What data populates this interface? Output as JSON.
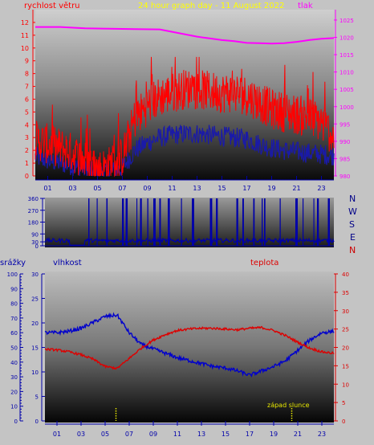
{
  "header": {
    "wind_label": "rychlost větru",
    "title": "24 hour graph day - 11 August 2022",
    "pressure_label": "tlak"
  },
  "bottom": {
    "precip_label": "srážky",
    "humidity_label": "vlhkost",
    "temp_label": "teplota",
    "sunset_label": "západ slunce"
  },
  "compass": [
    "N",
    "W",
    "S",
    "E",
    "N"
  ],
  "colors": {
    "wind_gust": "#ff0000",
    "wind_avg": "#1a1aa8",
    "pressure": "#ff00ff",
    "direction": "#0000aa",
    "humidity": "#0000cc",
    "temperature": "#dd0000",
    "sun_marker": "#e8e800",
    "background": "#c4c4c4"
  },
  "chart_data": [
    {
      "type": "line",
      "title": "24 hour graph day - 11 August 2022",
      "x_ticks": [
        "01",
        "03",
        "05",
        "07",
        "09",
        "11",
        "13",
        "15",
        "17",
        "19",
        "21",
        "23"
      ],
      "xlim": [
        0,
        24
      ],
      "y_left": {
        "label": "rychlost větru",
        "ylim": [
          0,
          13
        ],
        "ticks": [
          0,
          1,
          2,
          3,
          4,
          5,
          6,
          7,
          8,
          9,
          10,
          11,
          12
        ]
      },
      "y_right": {
        "label": "tlak",
        "ylim": [
          980,
          1028
        ],
        "ticks": [
          980,
          985,
          990,
          995,
          1000,
          1005,
          1010,
          1015,
          1020,
          1025
        ]
      },
      "series": [
        {
          "name": "tlak",
          "axis": "right",
          "x": [
            0,
            2,
            4,
            6,
            8,
            10,
            11,
            12,
            13,
            14,
            15,
            16,
            17,
            18,
            19,
            20,
            21,
            22,
            23,
            24
          ],
          "y": [
            1023,
            1023,
            1022.6,
            1022.5,
            1022.4,
            1022.3,
            1021.6,
            1020.9,
            1020.2,
            1019.7,
            1019.2,
            1018.9,
            1018.4,
            1018.3,
            1018.2,
            1018.3,
            1018.7,
            1019.2,
            1019.6,
            1019.8
          ]
        },
        {
          "name": "gust",
          "axis": "left",
          "x": [
            0,
            1,
            2,
            3,
            4,
            5,
            6,
            7,
            8,
            9,
            10,
            11,
            12,
            13,
            14,
            15,
            16,
            17,
            18,
            19,
            20,
            21,
            22,
            23,
            24
          ],
          "y": [
            2.8,
            2.5,
            2.2,
            1.8,
            1.2,
            0.5,
            0.8,
            1.5,
            4.5,
            5.5,
            6.2,
            6.5,
            6.8,
            6.8,
            6.6,
            6.5,
            6.5,
            6.3,
            5.8,
            5.2,
            5.0,
            4.8,
            4.6,
            4.2,
            3.0
          ]
        },
        {
          "name": "avg",
          "axis": "left",
          "x": [
            0,
            1,
            2,
            3,
            4,
            5,
            6,
            7,
            8,
            9,
            10,
            11,
            12,
            13,
            14,
            15,
            16,
            17,
            18,
            19,
            20,
            21,
            22,
            23,
            24
          ],
          "y": [
            1.5,
            1.2,
            1.0,
            0.8,
            0.5,
            0.2,
            0.3,
            0.6,
            2.0,
            2.6,
            3.0,
            3.2,
            3.3,
            3.3,
            3.2,
            3.1,
            3.0,
            2.9,
            2.5,
            2.2,
            2.0,
            1.9,
            1.8,
            1.7,
            1.6
          ]
        }
      ]
    },
    {
      "type": "line",
      "x_ticks": [
        "01",
        "03",
        "05",
        "07",
        "09",
        "11",
        "13",
        "15",
        "17",
        "19",
        "21",
        "23"
      ],
      "xlim": [
        0,
        24
      ],
      "y": {
        "ylim": [
          0,
          360
        ],
        "ticks": [
          0,
          30,
          90,
          180,
          270,
          360
        ]
      },
      "series": [
        {
          "name": "direction",
          "baseline": 40,
          "spikes_hours": [
            3.6,
            4.3,
            5.1,
            6.4,
            6.7,
            7.6,
            7.9,
            8.5,
            9.0,
            9.5,
            10.2,
            11.3,
            12.2,
            13.7,
            14.2,
            15.9,
            16.4,
            17.3,
            18.0,
            18.2,
            19.5,
            20.8,
            21.4,
            22.3,
            22.6,
            23.5
          ]
        }
      ]
    },
    {
      "type": "line",
      "x_ticks": [
        "01",
        "03",
        "05",
        "07",
        "09",
        "11",
        "13",
        "15",
        "17",
        "19",
        "21",
        "23"
      ],
      "xlim": [
        0,
        24
      ],
      "y_left_outer": {
        "label": "srážky",
        "ylim": [
          0,
          100
        ],
        "ticks": [
          0,
          10,
          20,
          30,
          40,
          50,
          60,
          70,
          80,
          90,
          100
        ]
      },
      "y_left_inner": {
        "label": "vlhkost",
        "ylim": [
          0,
          30
        ],
        "ticks": [
          0,
          5,
          10,
          15,
          20,
          25,
          30
        ]
      },
      "y_right": {
        "label": "teplota",
        "ylim": [
          0,
          40
        ],
        "ticks": [
          0,
          5,
          10,
          15,
          20,
          25,
          30,
          35,
          40
        ]
      },
      "series": [
        {
          "name": "vlhkost",
          "axis": "outer",
          "x": [
            0,
            1,
            2,
            3,
            4,
            5,
            6,
            7,
            8,
            9,
            10,
            11,
            12,
            13,
            14,
            15,
            16,
            17,
            18,
            19,
            20,
            21,
            22,
            23,
            24
          ],
          "y": [
            60,
            60,
            61,
            63,
            67,
            71,
            72,
            60,
            52,
            49,
            46,
            43,
            41,
            39,
            37,
            36,
            34,
            31,
            34,
            37,
            41,
            48,
            55,
            60,
            61
          ]
        },
        {
          "name": "teplota",
          "axis": "right",
          "x": [
            0,
            1,
            2,
            3,
            4,
            5,
            6,
            7,
            8,
            9,
            10,
            11,
            12,
            13,
            14,
            15,
            16,
            17,
            18,
            19,
            20,
            21,
            22,
            23,
            24
          ],
          "y": [
            19.5,
            19.3,
            18.8,
            18.0,
            16.8,
            14.8,
            14.3,
            17.0,
            19.8,
            22.0,
            23.5,
            24.6,
            25.0,
            25.2,
            25.2,
            25.0,
            24.8,
            25.2,
            25.4,
            24.6,
            23.2,
            21.4,
            19.8,
            18.8,
            18.4
          ]
        }
      ],
      "sun_markers_hours": [
        5.9,
        20.5
      ]
    }
  ]
}
